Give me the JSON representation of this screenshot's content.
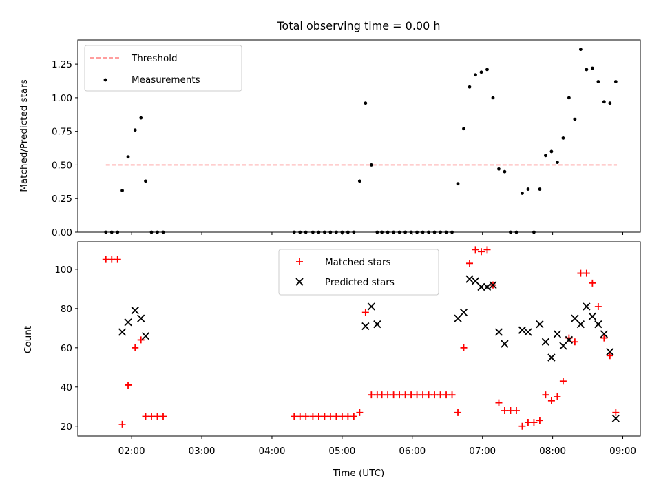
{
  "title": "Total observing time = 0.00 h",
  "colors": {
    "threshold": "#ff7f7f",
    "measurements": "#000000",
    "matched": "#ff0000",
    "predicted": "#000000"
  },
  "chart_data": [
    {
      "type": "scatter",
      "ylabel": "Matched/Predicted stars",
      "xlim": [
        "01:14",
        "09:15"
      ],
      "ylim": [
        0,
        1.43
      ],
      "yticks": [
        "0.00",
        "0.25",
        "0.50",
        "0.75",
        "1.00",
        "1.25"
      ],
      "xticks": [
        "02:00",
        "03:00",
        "04:00",
        "05:00",
        "06:00",
        "07:00",
        "08:00",
        "09:00"
      ],
      "legend": [
        "Threshold",
        "Measurements"
      ],
      "legend_position": "upper-left",
      "threshold": {
        "name": "Threshold",
        "value": 0.5,
        "x": [
          "01:38",
          "08:55"
        ]
      },
      "series": [
        {
          "name": "Measurements",
          "x": [
            "01:38",
            "01:43",
            "01:48",
            "01:52",
            "01:57",
            "02:03",
            "02:08",
            "02:12",
            "02:17",
            "02:22",
            "02:27",
            "04:19",
            "04:24",
            "04:29",
            "04:35",
            "04:40",
            "04:45",
            "04:50",
            "04:55",
            "05:00",
            "05:05",
            "05:10",
            "05:15",
            "05:20",
            "05:25",
            "05:30",
            "05:34",
            "05:39",
            "05:44",
            "05:49",
            "05:54",
            "05:59",
            "06:04",
            "06:09",
            "06:14",
            "06:19",
            "06:24",
            "06:29",
            "06:34",
            "06:39",
            "06:44",
            "06:49",
            "06:54",
            "06:59",
            "07:04",
            "07:09",
            "07:14",
            "07:19",
            "07:24",
            "07:29",
            "07:34",
            "07:39",
            "07:44",
            "07:49",
            "07:54",
            "07:59",
            "08:04",
            "08:09",
            "08:14",
            "08:19",
            "08:24",
            "08:29",
            "08:34",
            "08:39",
            "08:44",
            "08:49",
            "08:54"
          ],
          "y": [
            0,
            0,
            0,
            0.31,
            0.56,
            0.76,
            0.85,
            0.38,
            0,
            0,
            0,
            0,
            0,
            0,
            0,
            0,
            0,
            0,
            0,
            0,
            0,
            0,
            0.38,
            0.96,
            0.5,
            0,
            0,
            0,
            0,
            0,
            0,
            0,
            0,
            0,
            0,
            0,
            0,
            0,
            0,
            0.36,
            0.77,
            1.08,
            1.17,
            1.19,
            1.21,
            1.0,
            0.47,
            0.45,
            0,
            0,
            0.29,
            0.32,
            0,
            0.32,
            0.57,
            0.6,
            0.52,
            0.7,
            1.0,
            0.84,
            1.36,
            1.21,
            1.22,
            1.12,
            0.97,
            0.96,
            1.12
          ]
        }
      ]
    },
    {
      "type": "scatter",
      "xlabel": "Time (UTC)",
      "ylabel": "Count",
      "xlim": [
        "01:14",
        "09:15"
      ],
      "ylim": [
        15,
        114
      ],
      "yticks": [
        "20",
        "40",
        "60",
        "80",
        "100"
      ],
      "xticks": [
        "02:00",
        "03:00",
        "04:00",
        "05:00",
        "06:00",
        "07:00",
        "08:00",
        "09:00"
      ],
      "legend": [
        "Matched stars",
        "Predicted stars"
      ],
      "legend_position": "upper-center",
      "series": [
        {
          "name": "Matched stars",
          "x": [
            "01:38",
            "01:43",
            "01:48",
            "01:52",
            "01:57",
            "02:03",
            "02:08",
            "02:12",
            "02:17",
            "02:22",
            "02:27",
            "04:19",
            "04:24",
            "04:29",
            "04:35",
            "04:40",
            "04:45",
            "04:50",
            "04:55",
            "05:00",
            "05:05",
            "05:10",
            "05:15",
            "05:20",
            "05:25",
            "05:30",
            "05:34",
            "05:39",
            "05:44",
            "05:49",
            "05:54",
            "05:59",
            "06:04",
            "06:09",
            "06:14",
            "06:19",
            "06:24",
            "06:29",
            "06:34",
            "06:39",
            "06:44",
            "06:49",
            "06:54",
            "06:59",
            "07:04",
            "07:09",
            "07:14",
            "07:19",
            "07:24",
            "07:29",
            "07:34",
            "07:39",
            "07:44",
            "07:49",
            "07:54",
            "07:59",
            "08:04",
            "08:09",
            "08:14",
            "08:19",
            "08:24",
            "08:29",
            "08:34",
            "08:39",
            "08:44",
            "08:49",
            "08:54"
          ],
          "y": [
            105,
            105,
            105,
            21,
            41,
            60,
            64,
            25,
            25,
            25,
            25,
            25,
            25,
            25,
            25,
            25,
            25,
            25,
            25,
            25,
            25,
            25,
            27,
            78,
            36,
            36,
            36,
            36,
            36,
            36,
            36,
            36,
            36,
            36,
            36,
            36,
            36,
            36,
            36,
            27,
            60,
            103,
            110,
            109,
            110,
            92,
            32,
            28,
            28,
            28,
            20,
            22,
            22,
            23,
            36,
            33,
            35,
            43,
            65,
            63,
            98,
            98,
            93,
            81,
            65,
            56,
            27
          ]
        },
        {
          "name": "Predicted stars",
          "x": [
            "01:52",
            "01:57",
            "02:03",
            "02:08",
            "02:12",
            "05:20",
            "05:25",
            "05:30",
            "06:39",
            "06:44",
            "06:49",
            "06:54",
            "06:59",
            "07:04",
            "07:09",
            "07:14",
            "07:19",
            "07:34",
            "07:39",
            "07:49",
            "07:54",
            "07:59",
            "08:04",
            "08:09",
            "08:14",
            "08:19",
            "08:24",
            "08:29",
            "08:34",
            "08:39",
            "08:44",
            "08:49",
            "08:54"
          ],
          "y": [
            68,
            73,
            79,
            75,
            66,
            71,
            81,
            72,
            75,
            78,
            95,
            94,
            91,
            91,
            92,
            68,
            62,
            69,
            68,
            72,
            63,
            55,
            67,
            61,
            64,
            75,
            72,
            81,
            76,
            72,
            67,
            58,
            24
          ]
        }
      ]
    }
  ]
}
